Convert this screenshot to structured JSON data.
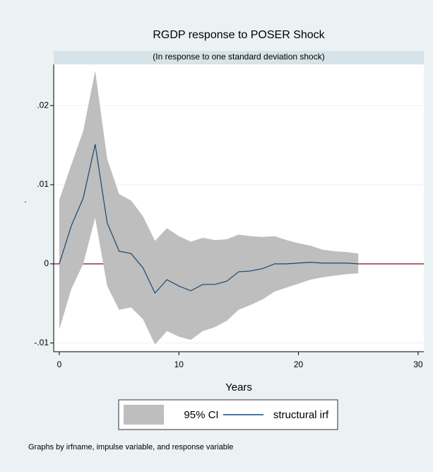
{
  "chart_data": {
    "type": "line",
    "title": "RGDP response to POSER Shock",
    "subtitle": "(In response to one standard deviation shock)",
    "x_label": "Years",
    "y_label": ".",
    "note": "Graphs by irfname, impulse variable, and response variable",
    "x": [
      0,
      1,
      2,
      3,
      4,
      5,
      6,
      7,
      8,
      9,
      10,
      11,
      12,
      13,
      14,
      15,
      16,
      17,
      18,
      19,
      20,
      21,
      22,
      23,
      24,
      25
    ],
    "series": [
      {
        "name": "95% CI",
        "color": "#bebebe",
        "lower": [
          -0.0083,
          -0.0032,
          0.0,
          0.0058,
          -0.0028,
          -0.0058,
          -0.0055,
          -0.007,
          -0.0102,
          -0.0085,
          -0.0092,
          -0.0096,
          -0.0085,
          -0.008,
          -0.0072,
          -0.0058,
          -0.0052,
          -0.0045,
          -0.0035,
          -0.003,
          -0.0025,
          -0.002,
          -0.0017,
          -0.0015,
          -0.0013,
          -0.0012
        ],
        "upper": [
          0.0081,
          0.0125,
          0.0168,
          0.0244,
          0.0133,
          0.0088,
          0.008,
          0.006,
          0.0029,
          0.0045,
          0.0035,
          0.0028,
          0.0033,
          0.003,
          0.0031,
          0.0037,
          0.0035,
          0.0034,
          0.0035,
          0.003,
          0.0026,
          0.0023,
          0.0018,
          0.0016,
          0.0015,
          0.0013
        ]
      },
      {
        "name": "structural irf",
        "color": "#1a476f",
        "values": [
          0,
          0.0048,
          0.0083,
          0.0151,
          0.0052,
          0.0016,
          0.0013,
          -0.0005,
          -0.0037,
          -0.002,
          -0.0028,
          -0.0034,
          -0.0026,
          -0.0026,
          -0.0022,
          -0.001,
          -0.0009,
          -0.0006,
          0.0,
          0.0,
          0.0001,
          0.0002,
          0.0001,
          0.0001,
          0.0001,
          0
        ]
      }
    ],
    "yline": 0,
    "yline_color": "#90353b",
    "xlim": [
      -0.47,
      30.48
    ],
    "xticks": [
      0,
      10,
      20,
      30
    ],
    "ylim": [
      -0.0111,
      0.0252
    ],
    "yticks": [
      {
        "value": -0.01,
        "label": "-.01"
      },
      0,
      {
        "value": 0.01,
        "label": ".01"
      },
      {
        "value": 0.02,
        "label": ".02"
      }
    ],
    "grid": true
  }
}
